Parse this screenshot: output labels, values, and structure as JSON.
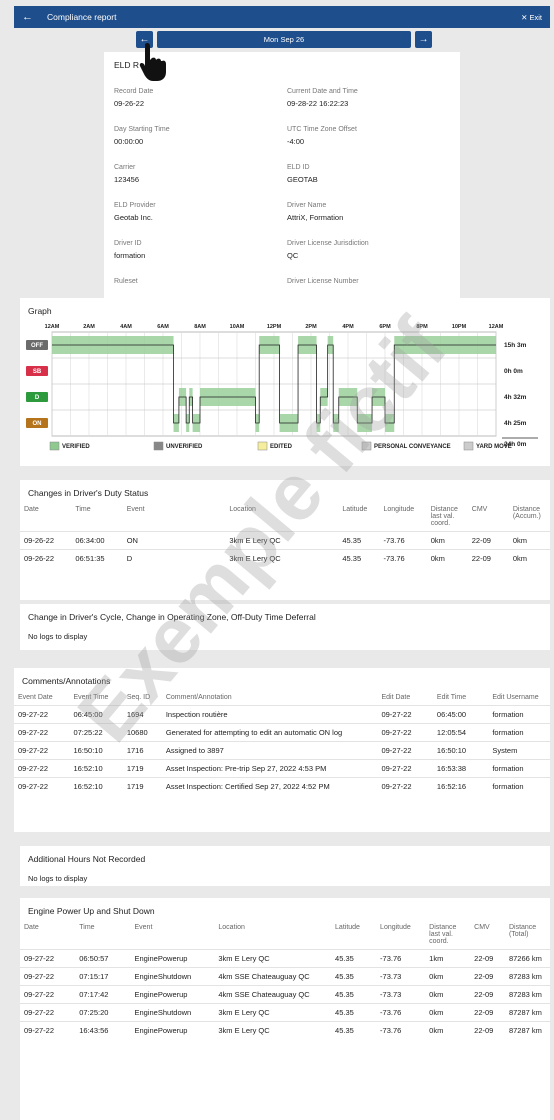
{
  "topbar": {
    "title": "Compliance report",
    "exit": "Exit"
  },
  "datebar": {
    "date": "Mon Sep 26"
  },
  "header": {
    "title": "ELD R",
    "fields": [
      {
        "label": "Record Date",
        "value": "09-26-22"
      },
      {
        "label": "Current Date and Time",
        "value": "09-28-22 16:22:23"
      },
      {
        "label": "Day Starting Time",
        "value": "00:00:00"
      },
      {
        "label": "UTC Time Zone Offset",
        "value": "-4:00"
      },
      {
        "label": "Carrier",
        "value": "123456"
      },
      {
        "label": "ELD ID",
        "value": "GEOTAB"
      },
      {
        "label": "ELD Provider",
        "value": "Geotab Inc."
      },
      {
        "label": "Driver Name",
        "value": "AttriX, Formation"
      },
      {
        "label": "Driver ID",
        "value": "formation"
      },
      {
        "label": "Driver License Jurisdiction",
        "value": "QC"
      },
      {
        "label": "Ruleset",
        "value": ""
      },
      {
        "label": "Driver License Number",
        "value": ""
      }
    ]
  },
  "graph": {
    "title": "Graph",
    "hour_labels": [
      "12AM",
      "2AM",
      "4AM",
      "6AM",
      "8AM",
      "10AM",
      "12PM",
      "2PM",
      "4PM",
      "6PM",
      "8PM",
      "10PM",
      "12AM"
    ],
    "rows": [
      {
        "label": "OFF",
        "total": "15h 3m",
        "color": "#6b6b6b"
      },
      {
        "label": "SB",
        "total": "0h 0m",
        "color": "#d9304a"
      },
      {
        "label": "D",
        "total": "4h 32m",
        "color": "#2e9a3e"
      },
      {
        "label": "ON",
        "total": "4h 25m",
        "color": "#b5731c"
      }
    ],
    "grand_total": "24h 0m",
    "legend": [
      {
        "label": "VERIFIED",
        "swatch": "#8fc98f"
      },
      {
        "label": "UNVERIFIED",
        "swatch": "#888888"
      },
      {
        "label": "EDITED",
        "swatch": "#f5ee9c"
      },
      {
        "label": "PERSONAL CONVEYANCE",
        "swatch": "hatch"
      },
      {
        "label": "YARD MOVE",
        "swatch": "hatch"
      }
    ]
  },
  "duty": {
    "title": "Changes in Driver's Duty Status",
    "headers": [
      "Date",
      "Time",
      "Event",
      "Location",
      "Latitude",
      "Longitude",
      "Distance last val. coord.",
      "CMV",
      "Distance (Accum.)"
    ],
    "rows": [
      [
        "09-26-22",
        "06:34:00",
        "ON",
        "3km E Lery QC",
        "45.35",
        "-73.76",
        "0km",
        "22-09",
        "0km"
      ],
      [
        "09-26-22",
        "06:51:35",
        "D",
        "3km E Lery QC",
        "45.35",
        "-73.76",
        "0km",
        "22-09",
        "0km"
      ]
    ]
  },
  "cycle": {
    "title": "Change in Driver's Cycle, Change in Operating Zone, Off-Duty Time Deferral",
    "empty": "No logs to display"
  },
  "comments": {
    "title": "Comments/Annotations",
    "headers": [
      "Event Date",
      "Event Time",
      "Seq. ID",
      "Comment/Annotation",
      "Edit Date",
      "Edit Time",
      "Edit Username"
    ],
    "rows": [
      [
        "09-27-22",
        "06:45:00",
        "1694",
        "Inspection routière",
        "09-27-22",
        "06:45:00",
        "formation"
      ],
      [
        "09-27-22",
        "07:25:22",
        "10680",
        "Generated for attempting to edit an automatic ON log",
        "09-27-22",
        "12:05:54",
        "formation"
      ],
      [
        "09-27-22",
        "16:50:10",
        "1716",
        "Assigned to 3897",
        "09-27-22",
        "16:50:10",
        "System"
      ],
      [
        "09-27-22",
        "16:52:10",
        "1719",
        "Asset Inspection: Pre-trip Sep 27, 2022 4:53 PM",
        "09-27-22",
        "16:53:38",
        "formation"
      ],
      [
        "09-27-22",
        "16:52:10",
        "1719",
        "Asset Inspection: Certified Sep 27, 2022 4:52 PM",
        "09-27-22",
        "16:52:16",
        "formation"
      ]
    ]
  },
  "additional": {
    "title": "Additional Hours Not Recorded",
    "empty": "No logs to display"
  },
  "engine": {
    "title": "Engine Power Up and Shut Down",
    "headers": [
      "Date",
      "Time",
      "Event",
      "Location",
      "Latitude",
      "Longitude",
      "Distance last val. coord.",
      "CMV",
      "Distance (Total)"
    ],
    "rows": [
      [
        "09-27-22",
        "06:50:57",
        "EnginePowerup",
        "3km E Lery QC",
        "45.35",
        "-73.76",
        "1km",
        "22-09",
        "87266 km"
      ],
      [
        "09-27-22",
        "07:15:17",
        "EngineShutdown",
        "4km SSE Chateauguay QC",
        "45.35",
        "-73.73",
        "0km",
        "22-09",
        "87283 km"
      ],
      [
        "09-27-22",
        "07:17:42",
        "EnginePowerup",
        "4km SSE Chateauguay QC",
        "45.35",
        "-73.73",
        "0km",
        "22-09",
        "87283 km"
      ],
      [
        "09-27-22",
        "07:25:20",
        "EngineShutdown",
        "3km E Lery QC",
        "45.35",
        "-73.76",
        "0km",
        "22-09",
        "87287 km"
      ],
      [
        "09-27-22",
        "16:43:56",
        "EnginePowerup",
        "3km E Lery QC",
        "45.35",
        "-73.76",
        "0km",
        "22-09",
        "87287 km"
      ]
    ]
  },
  "watermark": "Exemple fictif"
}
